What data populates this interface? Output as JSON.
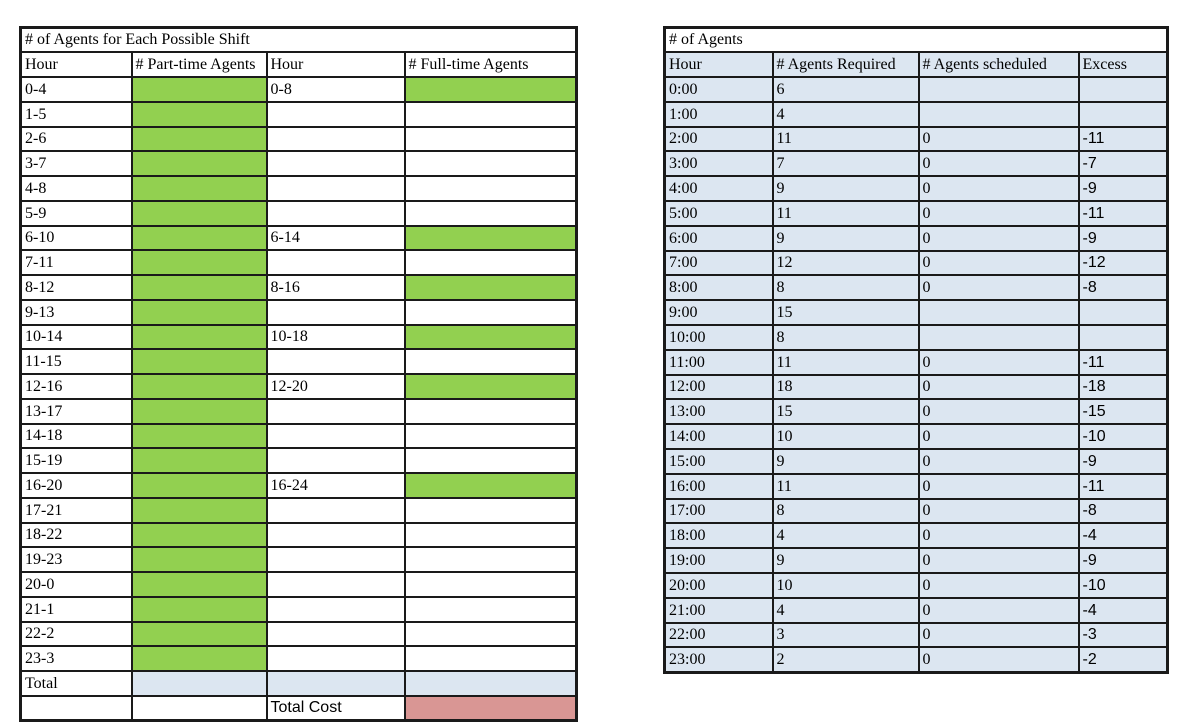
{
  "colors": {
    "input_green": "#92D050",
    "total_blue": "#DCE6F1",
    "cost_red": "#D99694",
    "grid_border": "#1a1a1a"
  },
  "shift_table": {
    "title": "# of Agents for Each Possible Shift",
    "headers": [
      "Hour",
      "# Part-time Agents",
      "Hour",
      "# Full-time Agents"
    ],
    "rows": [
      {
        "part_time_shift": "0-4",
        "full_time_shift": "0-8",
        "has_full_time_input": true
      },
      {
        "part_time_shift": "1-5",
        "full_time_shift": "",
        "has_full_time_input": false
      },
      {
        "part_time_shift": "2-6",
        "full_time_shift": "",
        "has_full_time_input": false
      },
      {
        "part_time_shift": "3-7",
        "full_time_shift": "",
        "has_full_time_input": false
      },
      {
        "part_time_shift": "4-8",
        "full_time_shift": "",
        "has_full_time_input": false
      },
      {
        "part_time_shift": "5-9",
        "full_time_shift": "",
        "has_full_time_input": false
      },
      {
        "part_time_shift": "6-10",
        "full_time_shift": "6-14",
        "has_full_time_input": true
      },
      {
        "part_time_shift": "7-11",
        "full_time_shift": "",
        "has_full_time_input": false
      },
      {
        "part_time_shift": "8-12",
        "full_time_shift": "8-16",
        "has_full_time_input": true
      },
      {
        "part_time_shift": "9-13",
        "full_time_shift": "",
        "has_full_time_input": false
      },
      {
        "part_time_shift": "10-14",
        "full_time_shift": "10-18",
        "has_full_time_input": true
      },
      {
        "part_time_shift": "11-15",
        "full_time_shift": "",
        "has_full_time_input": false
      },
      {
        "part_time_shift": "12-16",
        "full_time_shift": "12-20",
        "has_full_time_input": true
      },
      {
        "part_time_shift": "13-17",
        "full_time_shift": "",
        "has_full_time_input": false
      },
      {
        "part_time_shift": "14-18",
        "full_time_shift": "",
        "has_full_time_input": false
      },
      {
        "part_time_shift": "15-19",
        "full_time_shift": "",
        "has_full_time_input": false
      },
      {
        "part_time_shift": "16-20",
        "full_time_shift": "16-24",
        "has_full_time_input": true
      },
      {
        "part_time_shift": "17-21",
        "full_time_shift": "",
        "has_full_time_input": false
      },
      {
        "part_time_shift": "18-22",
        "full_time_shift": "",
        "has_full_time_input": false
      },
      {
        "part_time_shift": "19-23",
        "full_time_shift": "",
        "has_full_time_input": false
      },
      {
        "part_time_shift": "20-0",
        "full_time_shift": "",
        "has_full_time_input": false
      },
      {
        "part_time_shift": "21-1",
        "full_time_shift": "",
        "has_full_time_input": false
      },
      {
        "part_time_shift": "22-2",
        "full_time_shift": "",
        "has_full_time_input": false
      },
      {
        "part_time_shift": "23-3",
        "full_time_shift": "",
        "has_full_time_input": false
      }
    ],
    "total_label": "Total",
    "total_cost_label": "Total Cost"
  },
  "agents_table": {
    "title": "# of Agents",
    "headers": [
      "Hour",
      "# Agents Required",
      "# Agents scheduled",
      "Excess"
    ],
    "rows": [
      {
        "hour": "0:00",
        "required": "6",
        "scheduled": "",
        "excess": ""
      },
      {
        "hour": "1:00",
        "required": "4",
        "scheduled": "",
        "excess": ""
      },
      {
        "hour": "2:00",
        "required": "11",
        "scheduled": "0",
        "excess": "-11"
      },
      {
        "hour": "3:00",
        "required": "7",
        "scheduled": "0",
        "excess": "-7"
      },
      {
        "hour": "4:00",
        "required": "9",
        "scheduled": "0",
        "excess": "-9"
      },
      {
        "hour": "5:00",
        "required": "11",
        "scheduled": "0",
        "excess": "-11"
      },
      {
        "hour": "6:00",
        "required": "9",
        "scheduled": "0",
        "excess": "-9"
      },
      {
        "hour": "7:00",
        "required": "12",
        "scheduled": "0",
        "excess": "-12"
      },
      {
        "hour": "8:00",
        "required": "8",
        "scheduled": "0",
        "excess": "-8"
      },
      {
        "hour": "9:00",
        "required": "15",
        "scheduled": "",
        "excess": ""
      },
      {
        "hour": "10:00",
        "required": "8",
        "scheduled": "",
        "excess": ""
      },
      {
        "hour": "11:00",
        "required": "11",
        "scheduled": "0",
        "excess": "-11"
      },
      {
        "hour": "12:00",
        "required": "18",
        "scheduled": "0",
        "excess": "-18"
      },
      {
        "hour": "13:00",
        "required": "15",
        "scheduled": "0",
        "excess": "-15"
      },
      {
        "hour": "14:00",
        "required": "10",
        "scheduled": "0",
        "excess": "-10"
      },
      {
        "hour": "15:00",
        "required": "9",
        "scheduled": "0",
        "excess": "-9"
      },
      {
        "hour": "16:00",
        "required": "11",
        "scheduled": "0",
        "excess": "-11"
      },
      {
        "hour": "17:00",
        "required": "8",
        "scheduled": "0",
        "excess": "-8"
      },
      {
        "hour": "18:00",
        "required": "4",
        "scheduled": "0",
        "excess": "-4"
      },
      {
        "hour": "19:00",
        "required": "9",
        "scheduled": "0",
        "excess": "-9"
      },
      {
        "hour": "20:00",
        "required": "10",
        "scheduled": "0",
        "excess": "-10"
      },
      {
        "hour": "21:00",
        "required": "4",
        "scheduled": "0",
        "excess": "-4"
      },
      {
        "hour": "22:00",
        "required": "3",
        "scheduled": "0",
        "excess": "-3"
      },
      {
        "hour": "23:00",
        "required": "2",
        "scheduled": "0",
        "excess": "-2"
      }
    ]
  }
}
